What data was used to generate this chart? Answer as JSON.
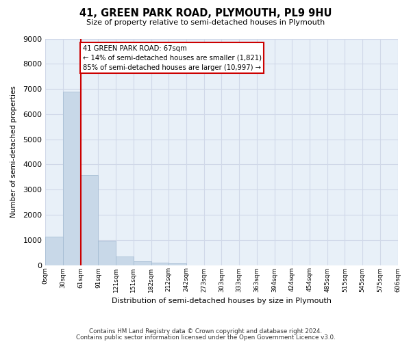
{
  "title": "41, GREEN PARK ROAD, PLYMOUTH, PL9 9HU",
  "subtitle": "Size of property relative to semi-detached houses in Plymouth",
  "xlabel": "Distribution of semi-detached houses by size in Plymouth",
  "ylabel": "Number of semi-detached properties",
  "bar_values": [
    1120,
    6900,
    3570,
    970,
    330,
    155,
    90,
    60,
    0,
    0,
    0,
    0,
    0,
    0,
    0,
    0,
    0,
    0,
    0,
    0
  ],
  "bin_labels": [
    "0sqm",
    "30sqm",
    "61sqm",
    "91sqm",
    "121sqm",
    "151sqm",
    "182sqm",
    "212sqm",
    "242sqm",
    "273sqm",
    "303sqm",
    "333sqm",
    "363sqm",
    "394sqm",
    "424sqm",
    "454sqm",
    "485sqm",
    "515sqm",
    "545sqm",
    "575sqm",
    "606sqm"
  ],
  "bar_color": "#c8d8e8",
  "bar_edge_color": "#a0b8d0",
  "annotation_text": "41 GREEN PARK ROAD: 67sqm\n← 14% of semi-detached houses are smaller (1,821)\n85% of semi-detached houses are larger (10,997) →",
  "annotation_box_color": "#ffffff",
  "annotation_box_edge_color": "#cc0000",
  "red_line_color": "#cc0000",
  "red_line_x": 2,
  "ylim": [
    0,
    9000
  ],
  "yticks": [
    0,
    1000,
    2000,
    3000,
    4000,
    5000,
    6000,
    7000,
    8000,
    9000
  ],
  "grid_color": "#d0d8e8",
  "bg_color": "#e8f0f8",
  "footer_line1": "Contains HM Land Registry data © Crown copyright and database right 2024.",
  "footer_line2": "Contains public sector information licensed under the Open Government Licence v3.0."
}
